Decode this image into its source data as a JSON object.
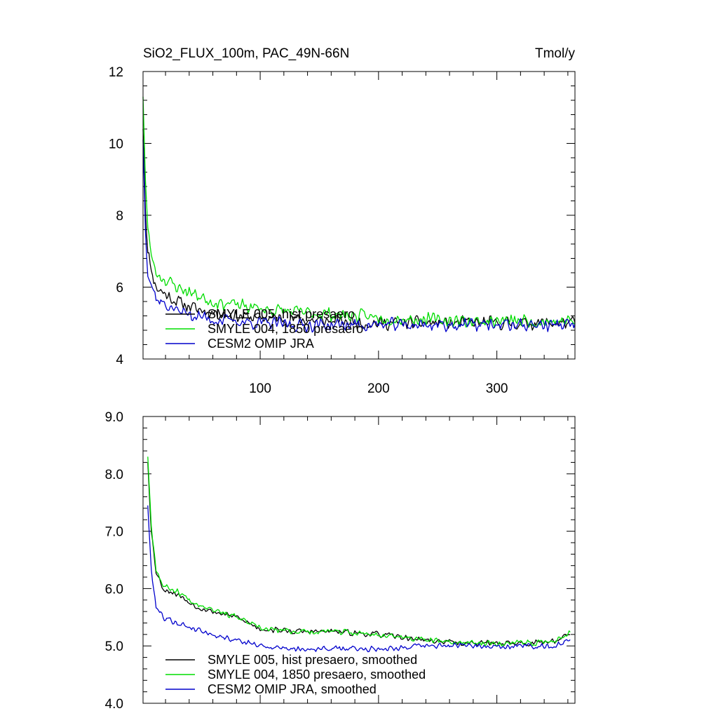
{
  "chart_data": [
    {
      "type": "line",
      "title": "SiO2_FLUX_100m, PAC_49N-66N",
      "units": "Tmol/y",
      "xlim": [
        1,
        366
      ],
      "ylim": [
        4,
        12
      ],
      "x_ticks": [
        100,
        200,
        300
      ],
      "x_tick_labels": [
        "100",
        "200",
        "300"
      ],
      "y_ticks": [
        4,
        6,
        8,
        10,
        12
      ],
      "y_tick_labels": [
        "4",
        "6",
        "8",
        "10",
        "12"
      ],
      "legend_position": "bottom-left",
      "series": [
        {
          "name": "SMYLE 005, hist presaero",
          "color": "#000000",
          "shape": [
            [
              1,
              10.4
            ],
            [
              3,
              8.2
            ],
            [
              5,
              7.0
            ],
            [
              8,
              6.5
            ],
            [
              12,
              6.0
            ],
            [
              20,
              5.8
            ],
            [
              30,
              5.6
            ],
            [
              45,
              5.4
            ],
            [
              60,
              5.3
            ],
            [
              80,
              5.2
            ],
            [
              100,
              5.15
            ],
            [
              130,
              5.1
            ],
            [
              160,
              5.05
            ],
            [
              200,
              5.0
            ],
            [
              240,
              5.0
            ],
            [
              280,
              5.0
            ],
            [
              320,
              5.0
            ],
            [
              366,
              5.0
            ]
          ],
          "noise": 0.22,
          "seed": 11
        },
        {
          "name": "SMYLE 004, 1850 presaero",
          "color": "#00dd00",
          "shape": [
            [
              1,
              11.3
            ],
            [
              3,
              9.0
            ],
            [
              5,
              7.6
            ],
            [
              8,
              6.9
            ],
            [
              12,
              6.4
            ],
            [
              20,
              6.2
            ],
            [
              30,
              6.0
            ],
            [
              45,
              5.8
            ],
            [
              60,
              5.6
            ],
            [
              80,
              5.5
            ],
            [
              100,
              5.4
            ],
            [
              130,
              5.3
            ],
            [
              160,
              5.25
            ],
            [
              200,
              5.15
            ],
            [
              240,
              5.1
            ],
            [
              280,
              5.05
            ],
            [
              320,
              5.05
            ],
            [
              366,
              5.05
            ]
          ],
          "noise": 0.22,
          "seed": 23
        },
        {
          "name": "CESM2 OMIP JRA",
          "color": "#0000cc",
          "shape": [
            [
              1,
              10.1
            ],
            [
              3,
              7.6
            ],
            [
              5,
              6.5
            ],
            [
              8,
              6.1
            ],
            [
              12,
              5.7
            ],
            [
              20,
              5.5
            ],
            [
              30,
              5.35
            ],
            [
              45,
              5.2
            ],
            [
              60,
              5.1
            ],
            [
              80,
              5.05
            ],
            [
              100,
              5.0
            ],
            [
              130,
              4.95
            ],
            [
              160,
              4.95
            ],
            [
              200,
              4.95
            ],
            [
              240,
              4.95
            ],
            [
              280,
              4.95
            ],
            [
              320,
              4.95
            ],
            [
              366,
              4.95
            ]
          ],
          "noise": 0.22,
          "seed": 37
        }
      ]
    },
    {
      "type": "line",
      "title": "",
      "xlim": [
        1,
        366
      ],
      "ylim": [
        4.0,
        9.0
      ],
      "x_ticks": [
        100,
        200,
        300
      ],
      "y_ticks": [
        4.0,
        5.0,
        6.0,
        7.0,
        8.0,
        9.0
      ],
      "y_tick_labels": [
        "4.0",
        "5.0",
        "6.0",
        "7.0",
        "8.0",
        "9.0"
      ],
      "legend_position": "bottom-left",
      "series": [
        {
          "name": "SMYLE 005, hist presaero, smoothed",
          "color": "#000000",
          "shape": [
            [
              5,
              8.2
            ],
            [
              8,
              7.0
            ],
            [
              12,
              6.3
            ],
            [
              18,
              6.0
            ],
            [
              30,
              5.9
            ],
            [
              45,
              5.7
            ],
            [
              60,
              5.6
            ],
            [
              80,
              5.5
            ],
            [
              100,
              5.3
            ],
            [
              130,
              5.25
            ],
            [
              160,
              5.25
            ],
            [
              200,
              5.2
            ],
            [
              240,
              5.1
            ],
            [
              270,
              5.05
            ],
            [
              300,
              5.05
            ],
            [
              330,
              5.05
            ],
            [
              350,
              5.1
            ],
            [
              362,
              5.2
            ]
          ],
          "noise": 0.06,
          "seed": 53
        },
        {
          "name": "SMYLE 004, 1850 presaero, smoothed",
          "color": "#00dd00",
          "shape": [
            [
              5,
              8.3
            ],
            [
              8,
              7.1
            ],
            [
              12,
              6.35
            ],
            [
              18,
              6.05
            ],
            [
              30,
              5.95
            ],
            [
              45,
              5.75
            ],
            [
              60,
              5.65
            ],
            [
              80,
              5.5
            ],
            [
              100,
              5.3
            ],
            [
              130,
              5.25
            ],
            [
              160,
              5.25
            ],
            [
              200,
              5.2
            ],
            [
              240,
              5.1
            ],
            [
              270,
              5.05
            ],
            [
              300,
              5.05
            ],
            [
              330,
              5.05
            ],
            [
              350,
              5.1
            ],
            [
              362,
              5.25
            ]
          ],
          "noise": 0.06,
          "seed": 67
        },
        {
          "name": "CESM2 OMIP JRA, smoothed",
          "color": "#0000cc",
          "shape": [
            [
              5,
              7.45
            ],
            [
              8,
              6.3
            ],
            [
              12,
              5.7
            ],
            [
              18,
              5.5
            ],
            [
              30,
              5.4
            ],
            [
              45,
              5.3
            ],
            [
              60,
              5.2
            ],
            [
              80,
              5.1
            ],
            [
              100,
              5.0
            ],
            [
              130,
              4.95
            ],
            [
              160,
              4.95
            ],
            [
              200,
              4.95
            ],
            [
              240,
              5.0
            ],
            [
              270,
              5.0
            ],
            [
              300,
              5.0
            ],
            [
              330,
              5.0
            ],
            [
              350,
              5.0
            ],
            [
              362,
              5.1
            ]
          ],
          "noise": 0.06,
          "seed": 79
        }
      ]
    }
  ]
}
